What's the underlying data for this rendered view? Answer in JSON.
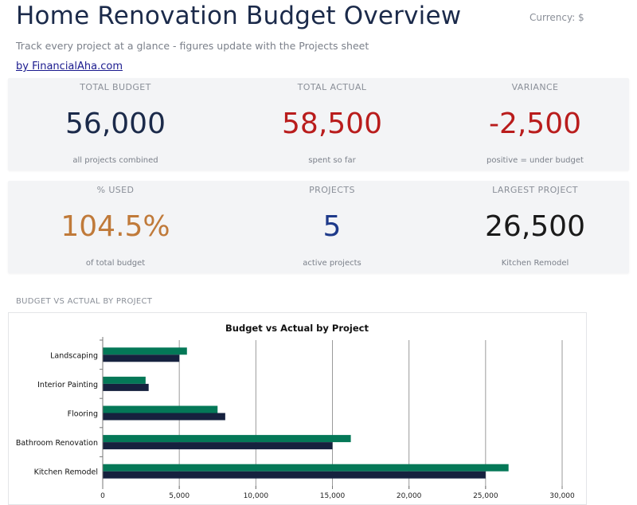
{
  "header": {
    "title": "Home Renovation Budget Overview",
    "currency": "Currency: $",
    "subtitle": "Track every project at a glance - figures update with the Projects sheet",
    "byline": "by FinancialAha.com"
  },
  "kpis": [
    {
      "label": "TOTAL BUDGET",
      "value": "56,000",
      "note": "all projects combined",
      "color": "#1b2a4a"
    },
    {
      "label": "TOTAL ACTUAL",
      "value": "58,500",
      "note": "spent so far",
      "color": "#b91c1c"
    },
    {
      "label": "VARIANCE",
      "value": "-2,500",
      "note": "positive = under budget",
      "color": "#b91c1c"
    },
    {
      "label": "% USED",
      "value": "104.5%",
      "note": "of total budget",
      "color": "#c07a3a"
    },
    {
      "label": "PROJECTS",
      "value": "5",
      "note": "active projects",
      "color": "#1e3a8a"
    },
    {
      "label": "LARGEST PROJECT",
      "value": "26,500",
      "note": "Kitchen Remodel",
      "color": "#1a1a1a"
    }
  ],
  "section": {
    "chart_title": "BUDGET VS ACTUAL BY PROJECT"
  },
  "chart_data": {
    "type": "bar",
    "orientation": "horizontal",
    "title": "Budget vs Actual by Project",
    "categories": [
      "Landscaping",
      "Interior Painting",
      "Flooring",
      "Bathroom Renovation",
      "Kitchen Remodel"
    ],
    "series": [
      {
        "values": [
          5500,
          2800,
          7500,
          16200,
          26500
        ],
        "color": "#047857"
      },
      {
        "values": [
          5000,
          3000,
          8000,
          15000,
          25000
        ],
        "color": "#16213e"
      }
    ],
    "x_ticks": [
      "0",
      "5,000",
      "10,000",
      "15,000",
      "20,000",
      "25,000",
      "30,000"
    ],
    "xlim": [
      0,
      30000
    ],
    "grid": true
  }
}
